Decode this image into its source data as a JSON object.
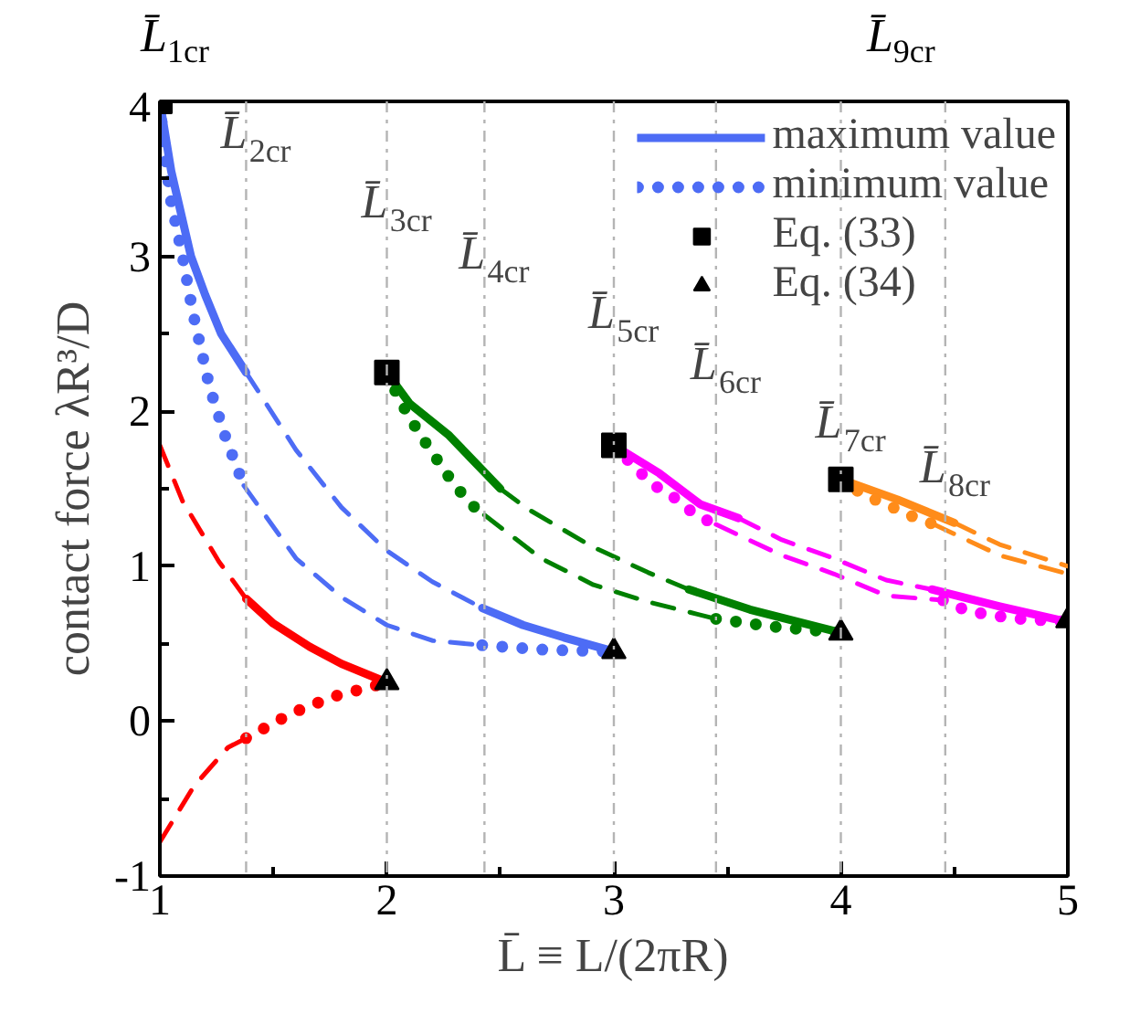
{
  "chart_data": {
    "type": "line",
    "xlabel": "L̄ ≡ L/(2πR)",
    "ylabel": "contact force λR³/D",
    "xlim": [
      1,
      5
    ],
    "ylim": [
      -1,
      4
    ],
    "xticks": [
      1,
      {
        "value": 1.5,
        "label": null
      },
      2,
      {
        "value": 2.5,
        "label": null
      },
      3,
      {
        "value": 3.5,
        "label": null
      },
      4,
      {
        "value": 4.5,
        "label": null
      },
      5
    ],
    "yticks": [
      -1,
      {
        "value": -0.5,
        "label": null
      },
      0,
      {
        "value": 0.5,
        "label": null
      },
      1,
      {
        "value": 1.5,
        "label": null
      },
      2,
      {
        "value": 2.5,
        "label": null
      },
      3,
      {
        "value": 3.5,
        "label": null
      },
      4
    ],
    "legend": "top right",
    "series": [
      {
        "name": "maximum value",
        "type": "line",
        "line_style": "solid",
        "color": "#4d6cf5",
        "x": [
          1,
          1.05,
          1.137,
          1.2,
          1.27,
          1.38
        ],
        "values": [
          4,
          3.55,
          3.0,
          2.75,
          2.5,
          2.25
        ]
      },
      {
        "name": "minimum value",
        "type": "line",
        "line_style": "dotted",
        "color": "#4d6cf5",
        "x": [
          1,
          1.02,
          1.05,
          1.1,
          1.145,
          1.22,
          1.29,
          1.37
        ],
        "values": [
          4,
          3.67,
          3.35,
          3.0,
          2.64,
          2.15,
          1.83,
          1.52
        ]
      },
      {
        "type": "line",
        "line_style": "dashed",
        "color": "#4d6cf5",
        "x": [
          1.38,
          1.6,
          1.8,
          2.0,
          2.2,
          2.42
        ],
        "values": [
          2.25,
          1.75,
          1.38,
          1.1,
          0.9,
          0.73
        ]
      },
      {
        "type": "line",
        "line_style": "dashed",
        "color": "#4d6cf5",
        "x": [
          1.37,
          1.6,
          1.8,
          2.0,
          2.2,
          2.42
        ],
        "values": [
          1.52,
          1.05,
          0.8,
          0.62,
          0.52,
          0.49
        ]
      },
      {
        "type": "line",
        "line_style": "solid",
        "color": "#4d6cf5",
        "x": [
          2.42,
          2.6,
          2.78,
          3
        ],
        "values": [
          0.73,
          0.62,
          0.54,
          0.45
        ]
      },
      {
        "type": "line",
        "line_style": "dotted",
        "color": "#4d6cf5",
        "x": [
          2.42,
          2.7,
          3
        ],
        "values": [
          0.49,
          0.46,
          0.45
        ]
      },
      {
        "type": "line",
        "line_style": "dashed",
        "color": "#ff0000",
        "x": [
          1,
          1.1,
          1.26,
          1.38
        ],
        "values": [
          1.78,
          1.42,
          1.03,
          0.79
        ]
      },
      {
        "type": "line",
        "line_style": "dashed",
        "color": "#ff0000",
        "x": [
          1,
          1.15,
          1.3,
          1.38
        ],
        "values": [
          -0.78,
          -0.42,
          -0.17,
          -0.11
        ]
      },
      {
        "type": "line",
        "line_style": "solid",
        "color": "#ff0000",
        "x": [
          1.38,
          1.5,
          1.66,
          1.8,
          2
        ],
        "values": [
          0.79,
          0.63,
          0.48,
          0.37,
          0.25
        ]
      },
      {
        "type": "line",
        "line_style": "dotted",
        "color": "#ff0000",
        "x": [
          1.38,
          1.48,
          1.58,
          1.68,
          1.79,
          1.9,
          2
        ],
        "values": [
          -0.11,
          -0.03,
          0.05,
          0.11,
          0.17,
          0.21,
          0.25
        ]
      },
      {
        "type": "line",
        "line_style": "solid",
        "color": "#008000",
        "x": [
          2,
          2.1,
          2.27,
          2.5
        ],
        "values": [
          2.25,
          2.05,
          1.85,
          1.5
        ]
      },
      {
        "type": "line",
        "line_style": "dotted",
        "color": "#008000",
        "x": [
          2,
          2.05,
          2.1,
          2.16,
          2.29,
          2.37,
          2.43
        ],
        "values": [
          2.25,
          2.09,
          1.96,
          1.82,
          1.54,
          1.4,
          1.33
        ]
      },
      {
        "type": "line",
        "line_style": "dashed",
        "color": "#008000",
        "x": [
          2.5,
          2.62,
          2.9,
          3.15,
          3.33
        ],
        "values": [
          1.5,
          1.37,
          1.13,
          0.96,
          0.85
        ]
      },
      {
        "type": "line",
        "line_style": "dashed",
        "color": "#008000",
        "x": [
          2.43,
          2.68,
          2.91,
          3.15,
          3.45
        ],
        "values": [
          1.33,
          1.05,
          0.88,
          0.77,
          0.66
        ]
      },
      {
        "type": "line",
        "line_style": "solid",
        "color": "#008000",
        "x": [
          3.33,
          3.6,
          4
        ],
        "values": [
          0.85,
          0.72,
          0.57
        ]
      },
      {
        "type": "line",
        "line_style": "dotted",
        "color": "#008000",
        "x": [
          3.45,
          3.7,
          4
        ],
        "values": [
          0.66,
          0.61,
          0.57
        ]
      },
      {
        "type": "line",
        "line_style": "solid",
        "color": "#ff00ff",
        "x": [
          3,
          3.2,
          3.38,
          3.55
        ],
        "values": [
          1.78,
          1.6,
          1.4,
          1.31
        ]
      },
      {
        "type": "line",
        "line_style": "dotted",
        "color": "#ff00ff",
        "x": [
          3,
          3.09,
          3.18,
          3.28,
          3.36,
          3.45
        ],
        "values": [
          1.78,
          1.64,
          1.52,
          1.43,
          1.33,
          1.27
        ]
      },
      {
        "type": "line",
        "line_style": "dashed",
        "color": "#ff00ff",
        "x": [
          3.55,
          3.74,
          3.97,
          4.2,
          4.4
        ],
        "values": [
          1.31,
          1.17,
          1.05,
          0.91,
          0.85
        ]
      },
      {
        "type": "line",
        "line_style": "dashed",
        "color": "#ff00ff",
        "x": [
          3.45,
          3.74,
          3.97,
          4.2,
          4.45
        ],
        "values": [
          1.27,
          1.07,
          0.95,
          0.81,
          0.78
        ]
      },
      {
        "type": "line",
        "line_style": "solid",
        "color": "#ff00ff",
        "x": [
          4.4,
          4.7,
          5
        ],
        "values": [
          0.85,
          0.74,
          0.64
        ]
      },
      {
        "type": "line",
        "line_style": "dotted",
        "color": "#ff00ff",
        "x": [
          4.45,
          4.56,
          4.68,
          4.79,
          4.9,
          5
        ],
        "values": [
          0.78,
          0.71,
          0.68,
          0.66,
          0.65,
          0.64
        ]
      },
      {
        "type": "line",
        "line_style": "solid",
        "color": "#ff8c1a",
        "x": [
          4,
          4.25,
          4.5
        ],
        "values": [
          1.56,
          1.43,
          1.28
        ]
      },
      {
        "type": "line",
        "line_style": "dotted",
        "color": "#ff8c1a",
        "x": [
          4,
          4.1,
          4.2,
          4.3,
          4.41
        ],
        "values": [
          1.56,
          1.46,
          1.4,
          1.33,
          1.27
        ]
      },
      {
        "type": "line",
        "line_style": "dashed",
        "color": "#ff8c1a",
        "x": [
          4.5,
          4.7,
          5
        ],
        "values": [
          1.28,
          1.14,
          1.0
        ]
      },
      {
        "type": "line",
        "line_style": "dashed",
        "color": "#ff8c1a",
        "x": [
          4.41,
          4.7,
          5
        ],
        "values": [
          1.27,
          1.07,
          0.95
        ]
      },
      {
        "name": "Eq. (33)",
        "type": "scatter",
        "marker": "square",
        "color": "#000000",
        "x": [
          1,
          2,
          3,
          4
        ],
        "values": [
          4,
          2.25,
          1.78,
          1.56
        ]
      },
      {
        "name": "Eq. (34)",
        "type": "scatter",
        "marker": "triangle",
        "color": "#000000",
        "x": [
          2,
          3,
          4,
          5
        ],
        "values": [
          0.25,
          0.45,
          0.57,
          0.65
        ]
      }
    ],
    "ref_lines": [
      {
        "axis": "x",
        "value": 1.38,
        "color": "#b4b4b4",
        "line_style": "dashdot"
      },
      {
        "axis": "x",
        "value": 2,
        "color": "#b4b4b4",
        "line_style": "dashdot"
      },
      {
        "axis": "x",
        "value": 2.43,
        "color": "#b4b4b4",
        "line_style": "dashdot"
      },
      {
        "axis": "x",
        "value": 3,
        "color": "#b4b4b4",
        "line_style": "dashdot"
      },
      {
        "axis": "x",
        "value": 3.45,
        "color": "#b4b4b4",
        "line_style": "dashdot"
      },
      {
        "axis": "x",
        "value": 4,
        "color": "#b4b4b4",
        "line_style": "dashdot"
      },
      {
        "axis": "x",
        "value": 4.46,
        "color": "#b4b4b4",
        "line_style": "dashdot"
      }
    ],
    "annotations": [
      "L̄$_{1cr}$",
      {
        "text": "L̄$_{2cr}$",
        "x": 1.38,
        "y": 3.8
      },
      {
        "text": "L̄$_{3cr}$",
        "x": 2,
        "y": 3.35
      },
      {
        "text": "L̄$_{4cr}$",
        "x": 2.43,
        "y": 3.02
      },
      {
        "text": "L̄$_{5cr}$",
        "x": 3,
        "y": 2.64
      },
      {
        "text": "L̄$_{6cr}$",
        "x": 3.45,
        "y": 2.31
      },
      {
        "text": "L̄$_{7cr}$",
        "x": 4,
        "y": 1.93
      },
      {
        "text": "L̄$_{8cr}$",
        "x": 4.46,
        "y": 1.64
      },
      "L̄$_{9cr}$"
    ]
  }
}
